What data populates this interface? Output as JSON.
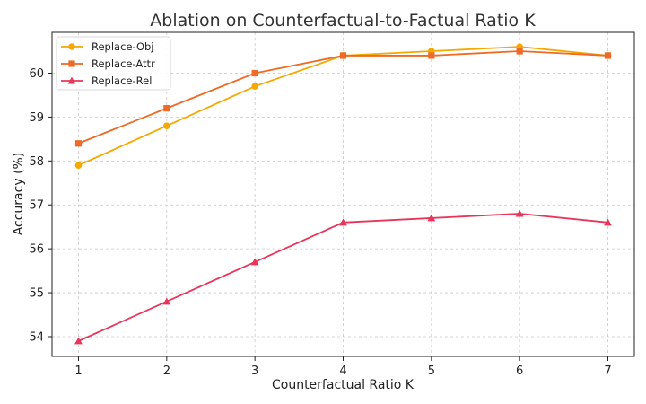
{
  "chart_data": {
    "type": "line",
    "title": "Ablation on Counterfactual-to-Factual Ratio K",
    "xlabel": "Counterfactual Ratio K",
    "ylabel": "Accuracy (%)",
    "x": [
      1,
      2,
      3,
      4,
      5,
      6,
      7
    ],
    "xticks": [
      "1",
      "2",
      "3",
      "4",
      "5",
      "6",
      "7"
    ],
    "yticks": [
      "54",
      "55",
      "56",
      "57",
      "58",
      "59",
      "60"
    ],
    "xlim": [
      0.7,
      7.3
    ],
    "ylim": [
      53.55,
      60.93
    ],
    "grid": true,
    "legend_position": "top-left",
    "series": [
      {
        "name": "Replace-Obj",
        "color": "#F5A800",
        "marker": "circle",
        "values": [
          57.9,
          58.8,
          59.7,
          60.4,
          60.5,
          60.6,
          60.4
        ]
      },
      {
        "name": "Replace-Attr",
        "color": "#EE6A26",
        "marker": "square",
        "values": [
          58.4,
          59.2,
          60.0,
          60.4,
          60.4,
          60.5,
          60.4
        ]
      },
      {
        "name": "Replace-Rel",
        "color": "#E8365A",
        "marker": "triangle",
        "values": [
          53.9,
          54.8,
          55.7,
          56.6,
          56.7,
          56.8,
          56.6
        ]
      }
    ]
  }
}
